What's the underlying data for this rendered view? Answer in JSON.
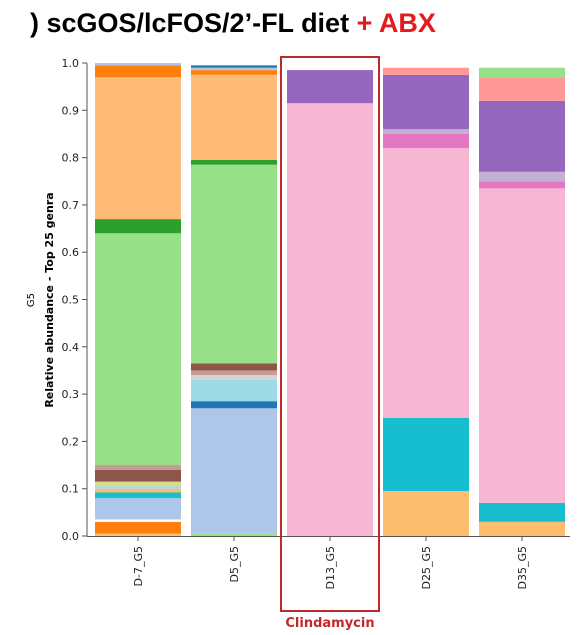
{
  "title": {
    "prefix": ") scGOS/lcFOS/2’-FL diet",
    "accent": "+ ABX",
    "accent_color": "#e41a1c"
  },
  "chart_data": {
    "type": "stacked-bar",
    "ylabel": "Relative abundance - Top 25 genra",
    "side_label": "G5",
    "ylim": [
      0,
      1.0
    ],
    "yticks": [
      0.0,
      0.1,
      0.2,
      0.3,
      0.4,
      0.5,
      0.6,
      0.7,
      0.8,
      0.9,
      1.0
    ],
    "ytick_labels": [
      "0.0",
      "0.1",
      "0.2",
      "0.3",
      "0.4",
      "0.5",
      "0.6",
      "0.7",
      "0.8",
      "0.9",
      "1.0"
    ],
    "categories": [
      "D-7_G5",
      "D5_G5",
      "D13_G5",
      "D25_G5",
      "D35_G5"
    ],
    "highlight": {
      "category": "D13_G5",
      "label": "Clindamycin",
      "color": "#c0282b"
    },
    "bars": [
      {
        "category": "D-7_G5",
        "segments": [
          {
            "value": 0.005,
            "color": "#fdbf6f"
          },
          {
            "value": 0.025,
            "color": "#ff7f0e"
          },
          {
            "value": 0.005,
            "color": "#ffffff"
          },
          {
            "value": 0.045,
            "color": "#aec7e8"
          },
          {
            "value": 0.012,
            "color": "#17becf"
          },
          {
            "value": 0.008,
            "color": "#fdbf6f"
          },
          {
            "value": 0.005,
            "color": "#9edae5"
          },
          {
            "value": 0.01,
            "color": "#dbdb8d"
          },
          {
            "value": 0.025,
            "color": "#8c564b"
          },
          {
            "value": 0.01,
            "color": "#c49c94"
          },
          {
            "value": 0.49,
            "color": "#98df8a"
          },
          {
            "value": 0.03,
            "color": "#2ca02c"
          },
          {
            "value": 0.3,
            "color": "#ffbb78"
          },
          {
            "value": 0.025,
            "color": "#ff7f0e"
          },
          {
            "value": 0.005,
            "color": "#aec7e8"
          }
        ]
      },
      {
        "category": "D5_G5",
        "segments": [
          {
            "value": 0.005,
            "color": "#98df8a"
          },
          {
            "value": 0.265,
            "color": "#aec7e8"
          },
          {
            "value": 0.015,
            "color": "#1f77b4"
          },
          {
            "value": 0.045,
            "color": "#9edae5"
          },
          {
            "value": 0.01,
            "color": "#d3d3d3"
          },
          {
            "value": 0.01,
            "color": "#c49c94"
          },
          {
            "value": 0.015,
            "color": "#8c564b"
          },
          {
            "value": 0.42,
            "color": "#98df8a"
          },
          {
            "value": 0.01,
            "color": "#2ca02c"
          },
          {
            "value": 0.18,
            "color": "#ffbb78"
          },
          {
            "value": 0.01,
            "color": "#ff7f0e"
          },
          {
            "value": 0.005,
            "color": "#aec7e8"
          },
          {
            "value": 0.005,
            "color": "#1f77b4"
          }
        ]
      },
      {
        "category": "D13_G5",
        "segments": [
          {
            "value": 0.915,
            "color": "#f7b6d2"
          },
          {
            "value": 0.07,
            "color": "#9467bd"
          }
        ]
      },
      {
        "category": "D25_G5",
        "segments": [
          {
            "value": 0.095,
            "color": "#fdbf6f"
          },
          {
            "value": 0.155,
            "color": "#17becf"
          },
          {
            "value": 0.57,
            "color": "#f7b6d2"
          },
          {
            "value": 0.03,
            "color": "#e377c2"
          },
          {
            "value": 0.01,
            "color": "#c5b0d5"
          },
          {
            "value": 0.115,
            "color": "#9467bd"
          },
          {
            "value": 0.015,
            "color": "#ff9896"
          }
        ]
      },
      {
        "category": "D35_G5",
        "segments": [
          {
            "value": 0.03,
            "color": "#fdbf6f"
          },
          {
            "value": 0.04,
            "color": "#17becf"
          },
          {
            "value": 0.665,
            "color": "#f7b6d2"
          },
          {
            "value": 0.015,
            "color": "#e377c2"
          },
          {
            "value": 0.02,
            "color": "#c5b0d5"
          },
          {
            "value": 0.15,
            "color": "#9467bd"
          },
          {
            "value": 0.05,
            "color": "#ff9896"
          },
          {
            "value": 0.02,
            "color": "#98df8a"
          }
        ]
      }
    ]
  }
}
